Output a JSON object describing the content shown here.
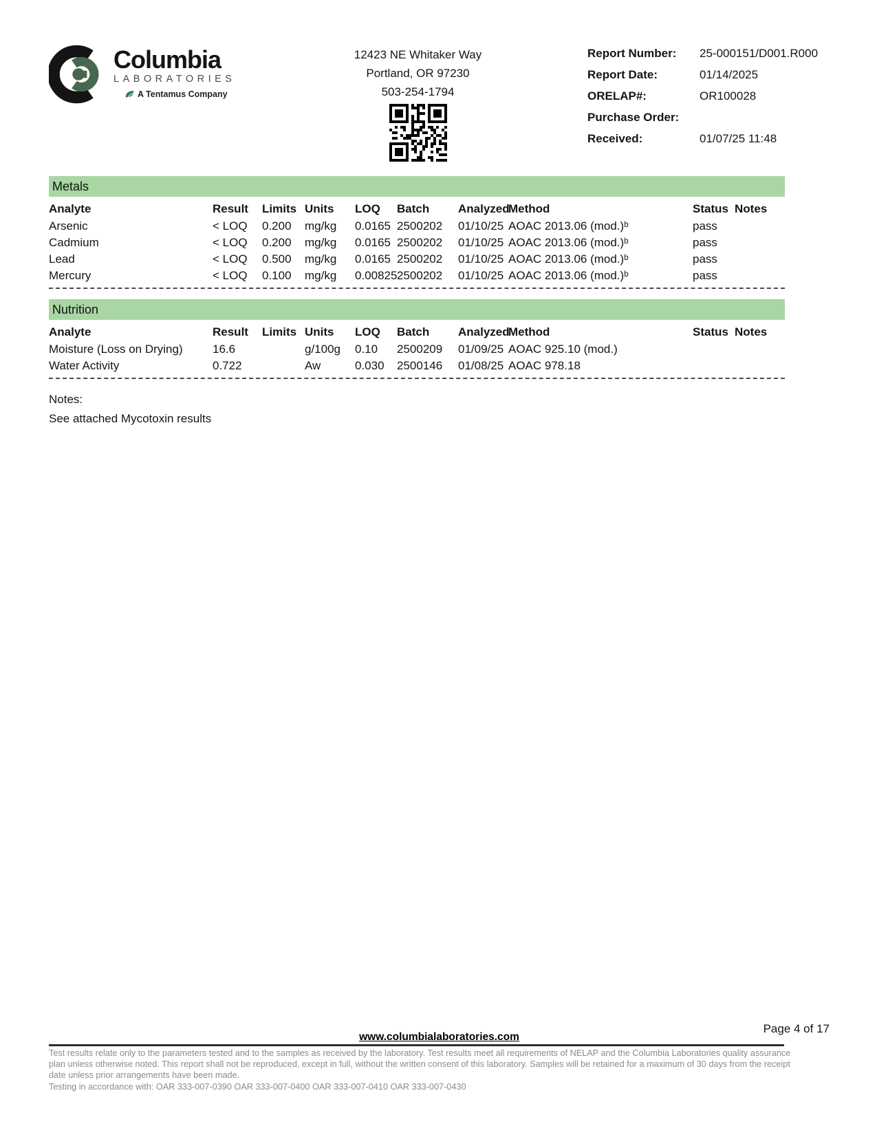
{
  "header": {
    "logo": {
      "brand": "Columbia",
      "sub": "LABORATORIES",
      "tagline": "A Tentamus Company"
    },
    "address": {
      "line1": "12423 NE Whitaker Way",
      "line2": "Portland, OR 97230",
      "phone": "503-254-1794"
    },
    "meta": {
      "report_number_label": "Report Number:",
      "report_number": "25-000151/D001.R000",
      "report_date_label": "Report Date:",
      "report_date": "01/14/2025",
      "orelap_label": "ORELAP#:",
      "orelap": "OR100028",
      "purchase_order_label": "Purchase Order:",
      "purchase_order": "",
      "received_label": "Received:",
      "received": "01/07/25  11:48"
    }
  },
  "columns": [
    "Analyte",
    "Result",
    "Limits",
    "Units",
    "LOQ",
    "Batch",
    "Analyzed",
    "Method",
    "Status",
    "Notes"
  ],
  "sections": {
    "metals": {
      "title": "Metals",
      "rows": [
        {
          "analyte": "Arsenic",
          "result": "< LOQ",
          "limits": "0.200",
          "units": "mg/kg",
          "loq": "0.0165",
          "batch": "2500202",
          "analyzed": "01/10/25",
          "method": "AOAC 2013.06 (mod.)ᵇ",
          "status": "pass",
          "notes": ""
        },
        {
          "analyte": "Cadmium",
          "result": "< LOQ",
          "limits": "0.200",
          "units": "mg/kg",
          "loq": "0.0165",
          "batch": "2500202",
          "analyzed": "01/10/25",
          "method": "AOAC 2013.06 (mod.)ᵇ",
          "status": "pass",
          "notes": ""
        },
        {
          "analyte": "Lead",
          "result": "< LOQ",
          "limits": "0.500",
          "units": "mg/kg",
          "loq": "0.0165",
          "batch": "2500202",
          "analyzed": "01/10/25",
          "method": "AOAC 2013.06 (mod.)ᵇ",
          "status": "pass",
          "notes": ""
        },
        {
          "analyte": "Mercury",
          "result": "< LOQ",
          "limits": "0.100",
          "units": "mg/kg",
          "loq": "0.00825",
          "batch": "2500202",
          "analyzed": "01/10/25",
          "method": "AOAC 2013.06 (mod.)ᵇ",
          "status": "pass",
          "notes": ""
        }
      ]
    },
    "nutrition": {
      "title": "Nutrition",
      "rows": [
        {
          "analyte": "Moisture (Loss on Drying)",
          "result": "16.6",
          "limits": "",
          "units": "g/100g",
          "loq": "0.10",
          "batch": "2500209",
          "analyzed": "01/09/25",
          "method": "AOAC 925.10 (mod.)",
          "status": "",
          "notes": ""
        },
        {
          "analyte": "Water Activity",
          "result": "0.722",
          "limits": "",
          "units": "Aw",
          "loq": "0.030",
          "batch": "2500146",
          "analyzed": "01/08/25",
          "method": "AOAC 978.18",
          "status": "",
          "notes": ""
        }
      ]
    }
  },
  "notes": {
    "heading": "Notes:",
    "body": "See attached Mycotoxin results"
  },
  "footer": {
    "page": "Page 4 of 17",
    "website": "www.columbialaboratories.com",
    "disclaimer": "Test results relate only to the parameters tested and to the samples as received by the laboratory. Test results meet all requirements of NELAP and the Columbia Laboratories quality assurance plan unless otherwise noted. This report shall not be reproduced, except in full, without the written consent of this laboratory. Samples will be retained for a maximum of 30 days from the receipt date unless prior arrangements have been made.",
    "accordance": "Testing in accordance with: OAR 333-007-0390 OAR 333-007-0400 OAR 333-007-0410  OAR 333-007-0430"
  },
  "colors": {
    "section_bar": "#a9d6a3",
    "logo_green": "#47684f",
    "leaf_green": "#2e7d4f"
  }
}
